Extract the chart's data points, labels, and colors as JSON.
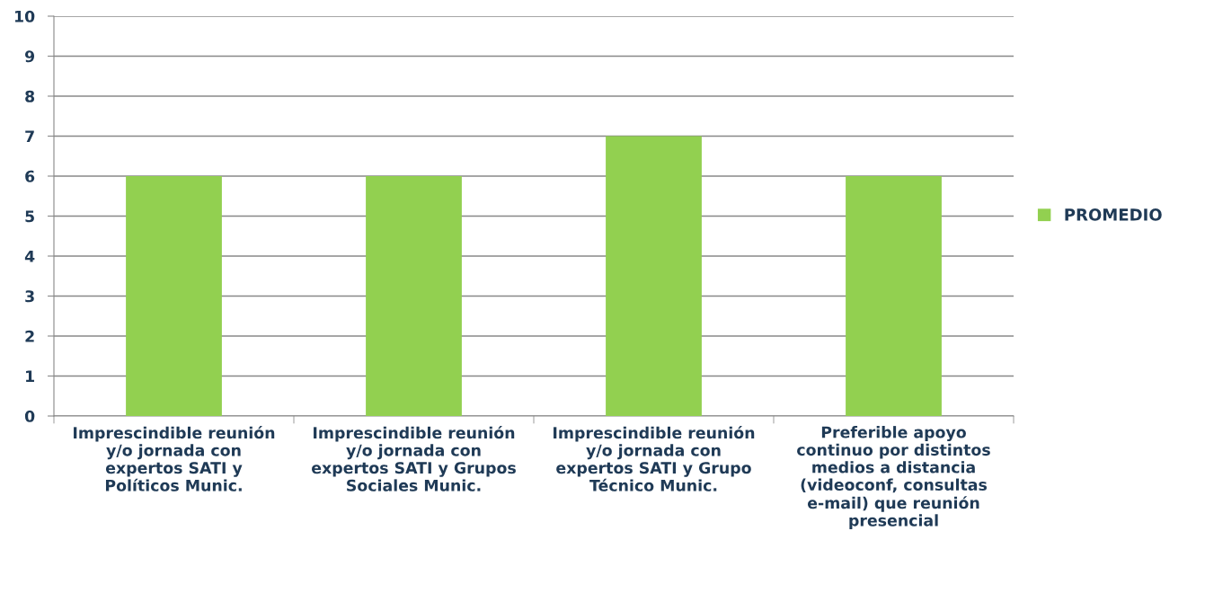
{
  "chart_data": {
    "type": "bar",
    "categories": [
      "Imprescindible reunión\ny/o jornada con\nexpertos SATI y\nPolíticos Munic.",
      "Imprescindible reunión\ny/o jornada con\nexpertos SATI y Grupos\nSociales Munic.",
      "Imprescindible reunión\ny/o jornada con\nexpertos SATI y Grupo\nTécnico Munic.",
      "Preferible apoyo\ncontinuo por distintos\nmedios a distancia\n(videoconf, consultas\ne-mail) que reunión\npresencial"
    ],
    "series": [
      {
        "name": "PROMEDIO",
        "color": "#92d050",
        "values": [
          6,
          6,
          7,
          6
        ]
      }
    ],
    "ylim": [
      0,
      10
    ],
    "yticks": [
      0,
      1,
      2,
      3,
      4,
      5,
      6,
      7,
      8,
      9,
      10
    ],
    "grid": "y",
    "legend": "right"
  }
}
